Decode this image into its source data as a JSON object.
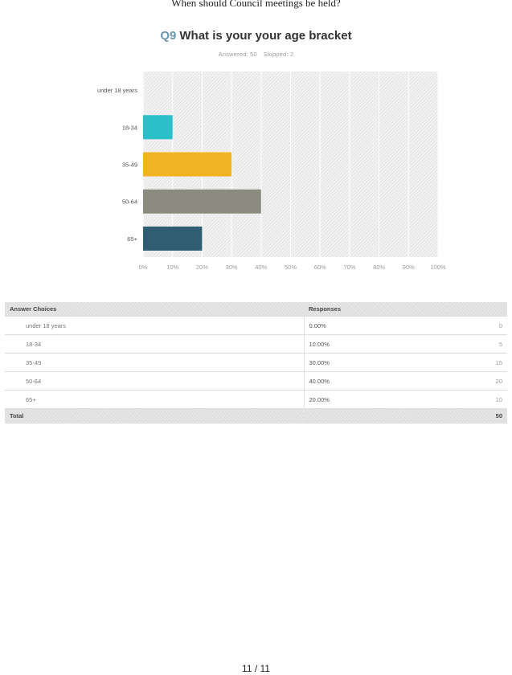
{
  "page": {
    "header": "When should Council meetings be held?",
    "page_number": "11 / 11"
  },
  "question": {
    "number": "Q9",
    "title": "What is your your age bracket",
    "answered": "Answered: 50",
    "skipped": "Skipped: 2"
  },
  "chart_data": {
    "type": "bar",
    "orientation": "horizontal",
    "categories": [
      "under 18 years",
      "18-34",
      "35-49",
      "50-64",
      "65+"
    ],
    "values": [
      0,
      10,
      30,
      40,
      20
    ],
    "colors": [
      "#cccccc",
      "#2bbfca",
      "#f0b323",
      "#8b8b80",
      "#2f5d71"
    ],
    "xlim": [
      0,
      100
    ],
    "xticks": [
      "0%",
      "10%",
      "20%",
      "30%",
      "40%",
      "50%",
      "60%",
      "70%",
      "80%",
      "90%",
      "100%"
    ],
    "grid": true
  },
  "table": {
    "headers": [
      "Answer Choices",
      "Responses",
      ""
    ],
    "rows": [
      {
        "choice": "under 18 years",
        "pct": "0.00%",
        "count": "0"
      },
      {
        "choice": "18-34",
        "pct": "10.00%",
        "count": "5"
      },
      {
        "choice": "35-49",
        "pct": "30.00%",
        "count": "15"
      },
      {
        "choice": "50-64",
        "pct": "40.00%",
        "count": "20"
      },
      {
        "choice": "65+",
        "pct": "20.00%",
        "count": "10"
      }
    ],
    "total_label": "Total",
    "total_count": "50"
  }
}
